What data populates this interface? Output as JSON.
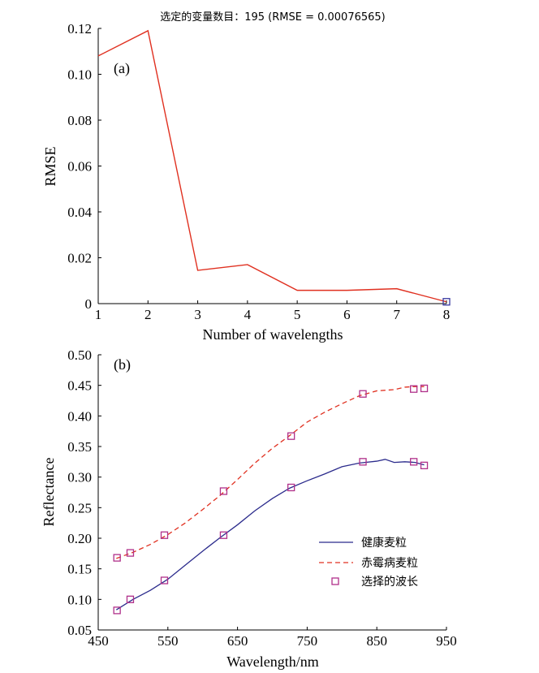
{
  "chart_data": [
    {
      "type": "line",
      "title": "选定的变量数目：195 (RMSE = 0.00076565)",
      "panel_label": "(a)",
      "xlabel": "Number of wavelengths",
      "ylabel": "RMSE",
      "xlim": [
        1,
        8
      ],
      "ylim": [
        0,
        0.12
      ],
      "x_ticks": [
        "1",
        "2",
        "3",
        "4",
        "5",
        "6",
        "7",
        "8"
      ],
      "y_ticks": [
        "0",
        "0.02",
        "0.04",
        "0.06",
        "0.08",
        "0.10",
        "0.12"
      ],
      "grid": false,
      "colors": {
        "line": "#e03020",
        "marker": "#3a3aa0"
      },
      "series": [
        {
          "x": [
            1,
            2,
            3,
            4,
            5,
            6,
            7,
            8
          ],
          "values": [
            0.108,
            0.119,
            0.0145,
            0.017,
            0.0058,
            0.0058,
            0.0065,
            0.0008
          ]
        }
      ],
      "selected_point": {
        "x": 8,
        "y": 0.0008
      }
    },
    {
      "type": "line",
      "panel_label": "(b)",
      "xlabel": "Wavelength/nm",
      "ylabel": "Reflectance",
      "xlim": [
        450,
        950
      ],
      "ylim": [
        0.05,
        0.5
      ],
      "x_ticks": [
        "450",
        "550",
        "650",
        "750",
        "850",
        "950"
      ],
      "y_ticks": [
        "0.05",
        "0.10",
        "0.15",
        "0.20",
        "0.25",
        "0.30",
        "0.35",
        "0.40",
        "0.45",
        "0.50"
      ],
      "grid": false,
      "legend_position": "bottom-right",
      "series": [
        {
          "name": "健康麦粒",
          "style": "solid",
          "color": "#2b2b8c",
          "x": [
            476,
            500,
            525,
            550,
            575,
            600,
            625,
            650,
            675,
            700,
            725,
            750,
            775,
            800,
            825,
            850,
            862,
            875,
            890,
            905,
            918
          ],
          "values": [
            0.083,
            0.1,
            0.115,
            0.133,
            0.156,
            0.179,
            0.201,
            0.222,
            0.245,
            0.265,
            0.282,
            0.294,
            0.305,
            0.317,
            0.323,
            0.326,
            0.329,
            0.324,
            0.325,
            0.324,
            0.32
          ]
        },
        {
          "name": "赤霉病麦粒",
          "style": "dashed",
          "color": "#e03020",
          "x": [
            476,
            500,
            525,
            550,
            575,
            600,
            625,
            650,
            675,
            700,
            725,
            750,
            775,
            800,
            825,
            850,
            875,
            890,
            905,
            918
          ],
          "values": [
            0.167,
            0.177,
            0.19,
            0.206,
            0.225,
            0.247,
            0.27,
            0.296,
            0.323,
            0.347,
            0.368,
            0.39,
            0.406,
            0.42,
            0.433,
            0.441,
            0.443,
            0.447,
            0.448,
            0.448
          ]
        }
      ],
      "markers": {
        "name": "选择的波长",
        "color": "#b0308a",
        "points": [
          {
            "x": 477,
            "y": 0.082
          },
          {
            "x": 477,
            "y": 0.168
          },
          {
            "x": 496,
            "y": 0.1
          },
          {
            "x": 496,
            "y": 0.176
          },
          {
            "x": 545,
            "y": 0.131
          },
          {
            "x": 545,
            "y": 0.205
          },
          {
            "x": 630,
            "y": 0.205
          },
          {
            "x": 630,
            "y": 0.277
          },
          {
            "x": 727,
            "y": 0.283
          },
          {
            "x": 727,
            "y": 0.367
          },
          {
            "x": 830,
            "y": 0.325
          },
          {
            "x": 830,
            "y": 0.436
          },
          {
            "x": 903,
            "y": 0.325
          },
          {
            "x": 903,
            "y": 0.444
          },
          {
            "x": 918,
            "y": 0.319
          },
          {
            "x": 918,
            "y": 0.445
          }
        ]
      }
    }
  ]
}
